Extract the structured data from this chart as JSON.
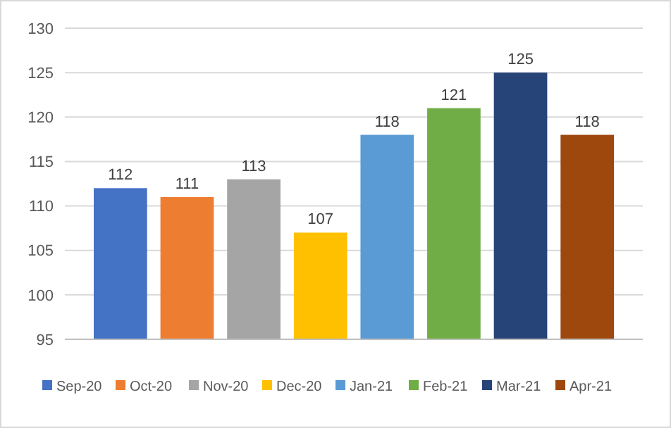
{
  "chart_data": {
    "type": "bar",
    "categories": [
      null
    ],
    "series": [
      {
        "name": "Sep-20",
        "color": "#4472c4",
        "values": [
          112
        ]
      },
      {
        "name": "Oct-20",
        "color": "#ed7d31",
        "values": [
          111
        ]
      },
      {
        "name": "Nov-20",
        "color": "#a5a5a5",
        "values": [
          113
        ]
      },
      {
        "name": "Dec-20",
        "color": "#ffc000",
        "values": [
          107
        ]
      },
      {
        "name": "Jan-21",
        "color": "#5b9bd5",
        "values": [
          118
        ]
      },
      {
        "name": "Feb-21",
        "color": "#70ad47",
        "values": [
          121
        ]
      },
      {
        "name": "Mar-21",
        "color": "#264478",
        "values": [
          125
        ]
      },
      {
        "name": "Apr-21",
        "color": "#9e480e",
        "values": [
          118
        ]
      }
    ],
    "ylim": [
      95,
      130
    ],
    "yticks": [
      95,
      100,
      105,
      110,
      115,
      120,
      125,
      130
    ],
    "grid": "y",
    "legend": "bottom",
    "data_labels": true
  }
}
